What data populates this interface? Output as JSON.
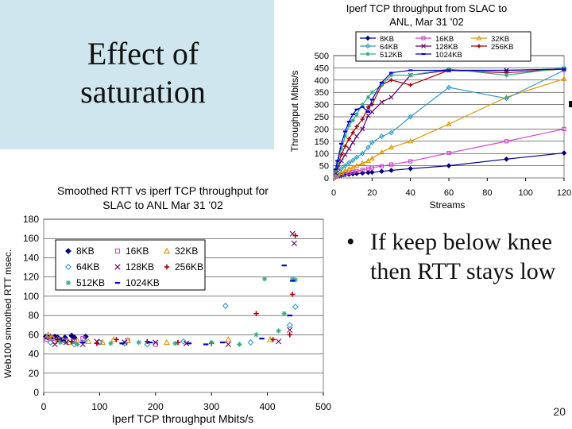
{
  "slide": {
    "title_line1": "Effect of",
    "title_line2": "saturation",
    "bullet_symbol": "•",
    "bullet_text": "If keep below knee then RTT stays low",
    "page_number": "20"
  },
  "chart_data": [
    {
      "type": "line",
      "title": "Iperf TCP throughput from SLAC to ANL, Mar 31 '02",
      "title_lines": [
        "Iperf TCP throughput from SLAC to",
        "ANL, Mar 31 '02"
      ],
      "xlabel": "Streams",
      "ylabel": "Throughput Mbits/s",
      "xlim": [
        0,
        120
      ],
      "ylim": [
        0,
        500
      ],
      "xticks": [
        0,
        20,
        40,
        60,
        80,
        100,
        120
      ],
      "yticks": [
        0,
        50,
        100,
        150,
        200,
        250,
        300,
        350,
        400,
        450,
        500
      ],
      "legend_position": "top",
      "series": [
        {
          "name": "8KB",
          "color": "#000080",
          "marker": "diamond-filled",
          "x": [
            1,
            2,
            3,
            4,
            5,
            6,
            8,
            10,
            12,
            15,
            18,
            20,
            25,
            30,
            40,
            60,
            90,
            120
          ],
          "y": [
            4,
            7,
            9,
            11,
            13,
            14,
            15,
            17,
            18,
            20,
            22,
            23,
            27,
            31,
            38,
            50,
            77,
            102
          ]
        },
        {
          "name": "16KB",
          "color": "#cc44cc",
          "marker": "square",
          "x": [
            1,
            2,
            4,
            6,
            8,
            10,
            12,
            15,
            18,
            20,
            25,
            30,
            40,
            60,
            90,
            120
          ],
          "y": [
            5,
            9,
            14,
            18,
            22,
            25,
            28,
            33,
            38,
            42,
            48,
            55,
            68,
            102,
            150,
            200
          ]
        },
        {
          "name": "32KB",
          "color": "#dd9900",
          "marker": "triangle",
          "x": [
            1,
            2,
            4,
            6,
            8,
            10,
            12,
            15,
            18,
            20,
            25,
            30,
            40,
            60,
            90,
            120
          ],
          "y": [
            8,
            14,
            22,
            30,
            37,
            43,
            50,
            60,
            70,
            80,
            105,
            125,
            150,
            220,
            330,
            405
          ]
        },
        {
          "name": "64KB",
          "color": "#3399cc",
          "marker": "diamond-open",
          "x": [
            1,
            2,
            4,
            6,
            8,
            10,
            12,
            15,
            18,
            20,
            25,
            30,
            40,
            60,
            90,
            120
          ],
          "y": [
            12,
            22,
            38,
            50,
            62,
            72,
            85,
            100,
            125,
            145,
            170,
            185,
            250,
            370,
            325,
            440
          ]
        },
        {
          "name": "128KB",
          "color": "#660066",
          "marker": "x",
          "x": [
            1,
            2,
            4,
            6,
            8,
            10,
            12,
            15,
            18,
            20,
            25,
            30,
            40,
            60,
            90,
            120
          ],
          "y": [
            20,
            40,
            70,
            95,
            120,
            145,
            170,
            200,
            255,
            270,
            310,
            330,
            420,
            440,
            440,
            445
          ]
        },
        {
          "name": "256KB",
          "color": "#aa0000",
          "marker": "plus",
          "x": [
            1,
            2,
            4,
            6,
            8,
            10,
            12,
            15,
            18,
            20,
            25,
            30,
            40,
            60,
            90,
            120
          ],
          "y": [
            25,
            50,
            95,
            130,
            160,
            185,
            210,
            240,
            290,
            300,
            380,
            400,
            380,
            440,
            430,
            445
          ]
        },
        {
          "name": "512KB",
          "color": "#33aa88",
          "marker": "star",
          "x": [
            1,
            2,
            4,
            6,
            8,
            10,
            12,
            15,
            18,
            20,
            25,
            30,
            40,
            60,
            90,
            120
          ],
          "y": [
            30,
            60,
            120,
            170,
            215,
            235,
            260,
            300,
            330,
            350,
            380,
            420,
            420,
            445,
            420,
            450
          ]
        },
        {
          "name": "1024KB",
          "color": "#0000cc",
          "marker": "dash",
          "x": [
            1,
            2,
            4,
            6,
            8,
            10,
            12,
            15,
            18,
            20,
            25,
            30,
            40,
            60,
            90,
            120
          ],
          "y": [
            35,
            70,
            140,
            190,
            230,
            260,
            280,
            290,
            270,
            320,
            390,
            430,
            440,
            440,
            440,
            445
          ]
        }
      ]
    },
    {
      "type": "scatter",
      "title": "Smoothed RTT vs iperf TCP throughput for SLAC to ANL Mar 31 '02",
      "title_lines": [
        "Smoothed RTT vs iperf TCP throughput for",
        "SLAC to ANL Mar 31 '02"
      ],
      "xlabel": "Iperf TCP throughput Mbits/s",
      "ylabel": "Web100 smoothed RTT msec.",
      "xlim": [
        0,
        500
      ],
      "ylim": [
        0,
        180
      ],
      "xticks": [
        0,
        100,
        200,
        300,
        400,
        500
      ],
      "yticks": [
        0,
        20,
        40,
        60,
        80,
        100,
        120,
        140,
        160,
        180
      ],
      "legend_position": "top-left",
      "series": [
        {
          "name": "8KB",
          "color": "#000080",
          "marker": "diamond-filled",
          "x": [
            4,
            8,
            12,
            15,
            20,
            25,
            30,
            38,
            50,
            55,
            75
          ],
          "y": [
            58,
            57,
            58,
            56,
            58,
            57,
            55,
            57,
            59,
            57,
            58
          ]
        },
        {
          "name": "16KB",
          "color": "#cc44cc",
          "marker": "square",
          "x": [
            5,
            10,
            15,
            20,
            30,
            40,
            55,
            70,
            100,
            150,
            200
          ],
          "y": [
            55,
            58,
            56,
            53,
            55,
            54,
            53,
            56,
            52,
            54,
            50
          ]
        },
        {
          "name": "32KB",
          "color": "#dd9900",
          "marker": "triangle",
          "x": [
            8,
            15,
            25,
            35,
            45,
            60,
            80,
            105,
            125,
            150,
            220,
            330,
            405
          ],
          "y": [
            60,
            57,
            55,
            54,
            52,
            54,
            53,
            52,
            55,
            54,
            52,
            55,
            55
          ]
        },
        {
          "name": "64KB",
          "color": "#3399cc",
          "marker": "diamond-open",
          "x": [
            12,
            25,
            40,
            55,
            72,
            100,
            145,
            185,
            250,
            325,
            370,
            440,
            450
          ],
          "y": [
            52,
            55,
            53,
            50,
            54,
            52,
            51,
            50,
            53,
            90,
            52,
            70,
            89
          ]
        },
        {
          "name": "128KB",
          "color": "#660066",
          "marker": "x",
          "x": [
            20,
            40,
            70,
            95,
            145,
            200,
            255,
            330,
            420,
            440,
            445,
            448
          ],
          "y": [
            50,
            52,
            50,
            53,
            52,
            52,
            51,
            50,
            53,
            65,
            165,
            155
          ]
        },
        {
          "name": "256KB",
          "color": "#aa0000",
          "marker": "plus",
          "x": [
            25,
            50,
            95,
            130,
            185,
            240,
            300,
            380,
            410,
            440,
            445,
            450
          ],
          "y": [
            55,
            53,
            51,
            55,
            53,
            52,
            51,
            82,
            55,
            60,
            102,
            163
          ]
        },
        {
          "name": "512KB",
          "color": "#33aa88",
          "marker": "star",
          "x": [
            30,
            60,
            120,
            170,
            235,
            300,
            350,
            380,
            395,
            420,
            430,
            445,
            450
          ],
          "y": [
            52,
            50,
            51,
            52,
            51,
            52,
            50,
            60,
            118,
            64,
            82,
            118,
            117
          ]
        },
        {
          "name": "1024KB",
          "color": "#0000cc",
          "marker": "dash",
          "x": [
            35,
            70,
            140,
            190,
            260,
            290,
            320,
            390,
            430,
            440,
            445
          ],
          "y": [
            54,
            52,
            51,
            52,
            51,
            50,
            52,
            56,
            132,
            80,
            116
          ]
        }
      ]
    }
  ]
}
